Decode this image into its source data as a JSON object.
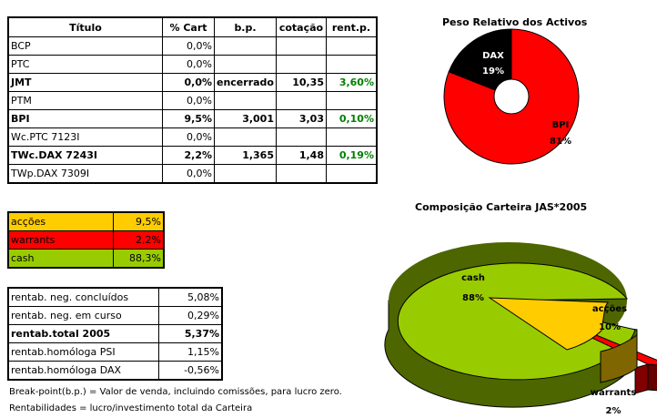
{
  "holdings_table": {
    "headers": [
      "Título",
      "% Cart",
      "b.p.",
      "cotação",
      "rent.p."
    ],
    "rows": [
      {
        "titulo": "BCP",
        "pct": "0,0%",
        "bp": "",
        "cotacao": "",
        "rent": "",
        "bold": false
      },
      {
        "titulo": "PTC",
        "pct": "0,0%",
        "bp": "",
        "cotacao": "",
        "rent": "",
        "bold": false
      },
      {
        "titulo": "JMT",
        "pct": "0,0%",
        "bp": "encerrado",
        "cotacao": "10,35",
        "rent": "3,60%",
        "bold": true
      },
      {
        "titulo": "PTM",
        "pct": "0,0%",
        "bp": "",
        "cotacao": "",
        "rent": "",
        "bold": false
      },
      {
        "titulo": "BPI",
        "pct": "9,5%",
        "bp": "3,001",
        "cotacao": "3,03",
        "rent": "0,10%",
        "bold": true
      },
      {
        "titulo": "Wc.PTC 7123I",
        "pct": "0,0%",
        "bp": "",
        "cotacao": "",
        "rent": "",
        "bold": false
      },
      {
        "titulo": "TWc.DAX 7243I",
        "pct": "2,2%",
        "bp": "1,365",
        "cotacao": "1,48",
        "rent": "0,19%",
        "bold": true
      },
      {
        "titulo": "TWp.DAX 7309I",
        "pct": "0,0%",
        "bp": "",
        "cotacao": "",
        "rent": "",
        "bold": false
      }
    ]
  },
  "allocation_table": [
    {
      "label": "acções",
      "value": "9,5%",
      "color": "#FFCC00"
    },
    {
      "label": "warrants",
      "value": "2,2%",
      "color": "#FF0000"
    },
    {
      "label": "cash",
      "value": "88,3%",
      "color": "#99CC00"
    }
  ],
  "returns_table": [
    {
      "label": "rentab. neg. concluídos",
      "value": "5,08%",
      "bold": false
    },
    {
      "label": "rentab. neg. em curso",
      "value": "0,29%",
      "bold": false
    },
    {
      "label": "rentab.total 2005",
      "value": "5,37%",
      "bold": true
    },
    {
      "label": "rentab.homóloga PSI",
      "value": "1,15%",
      "bold": false
    },
    {
      "label": "rentab.homóloga DAX",
      "value": "-0,56%",
      "bold": false
    }
  ],
  "notes": {
    "breakpoint": "Break-point(b.p.) = Valor de venda, incluindo comissões, para lucro zero.",
    "returns": "Rentabilidades = lucro/investimento total da Carteira"
  },
  "chart_data": [
    {
      "type": "pie",
      "variant": "doughnut",
      "title": "Peso Relativo dos Activos",
      "categories": [
        "BPI",
        "DAX"
      ],
      "values": [
        81,
        19
      ],
      "labels": [
        "81%",
        "19%"
      ],
      "colors": [
        "#FF0000",
        "#000000"
      ]
    },
    {
      "type": "pie",
      "variant": "3d-exploded",
      "title": "Composição Carteira JAS*2005",
      "categories": [
        "cash",
        "acções",
        "warrants"
      ],
      "values": [
        88,
        10,
        2
      ],
      "labels": [
        "88%",
        "10%",
        "2%"
      ],
      "colors": [
        "#99CC00",
        "#FFCC00",
        "#FF0000"
      ]
    }
  ]
}
